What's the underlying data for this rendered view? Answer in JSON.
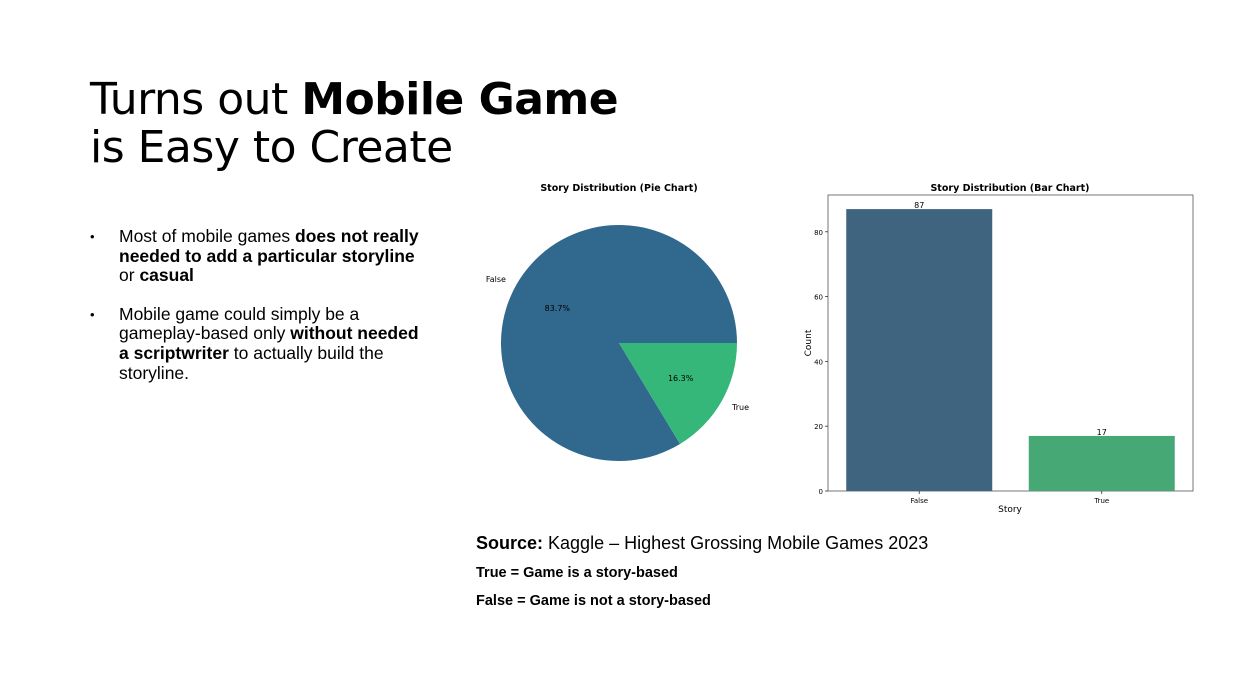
{
  "slide": {
    "title_line1_normal": "Turns out ",
    "title_line1_bold": "Mobile Game",
    "title_line2": "is Easy to Create",
    "bullets": [
      {
        "p1": "Most of mobile games ",
        "b1": "does not really needed to add a particular storyline",
        "p2": " or ",
        "b2": "casual",
        "p3": ""
      },
      {
        "p1": "Mobile game could simply be a gameplay-based only ",
        "b1": "without needed a scriptwriter",
        "p2": " to actually build the storyline.",
        "b2": "",
        "p3": ""
      }
    ],
    "source_label": "Source:",
    "source_text": " Kaggle – Highest Grossing Mobile Games 2023",
    "note_true": "True = Game is a story-based",
    "note_false": "False = Game is not a story-based",
    "bullet_glyph": "•"
  },
  "chart_data": [
    {
      "type": "pie",
      "title": "Story Distribution (Pie Chart)",
      "categories": [
        "False",
        "True"
      ],
      "values": [
        87,
        17
      ],
      "pct_labels": [
        "83.7%",
        "16.3%"
      ],
      "colors": [
        "#31688e",
        "#35b779"
      ]
    },
    {
      "type": "bar",
      "title": "Story Distribution (Bar Chart)",
      "categories": [
        "False",
        "True"
      ],
      "values": [
        87,
        17
      ],
      "value_labels": [
        "87",
        "17"
      ],
      "xlabel": "Story",
      "ylabel": "Count",
      "ylim": [
        0,
        91.35
      ],
      "yticks": [
        0,
        20,
        40,
        60,
        80
      ],
      "colors": [
        "#3e6480",
        "#46a874"
      ],
      "grid": false
    }
  ]
}
